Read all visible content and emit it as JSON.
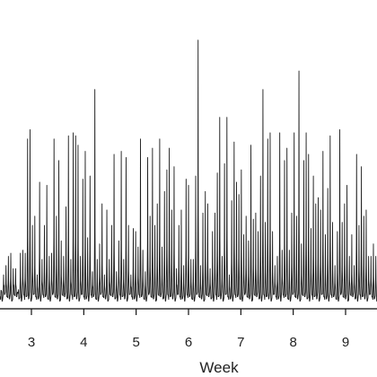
{
  "chart_data": {
    "type": "line",
    "title": "",
    "xlabel": "Week",
    "ylabel": "",
    "xlim": [
      2.4,
      9.6
    ],
    "ylim": [
      0,
      100
    ],
    "grid": false,
    "legend": "none",
    "x_ticks": [
      3,
      4,
      5,
      6,
      7,
      8,
      9
    ],
    "x_tick_labels": [
      "3",
      "4",
      "5",
      "6",
      "7",
      "8",
      "9"
    ],
    "series_color": "#1a1a1a",
    "samples_per_week": 56,
    "peak_heights": [
      6,
      11,
      14,
      17,
      18,
      13,
      13,
      5,
      18,
      19,
      18,
      55,
      58,
      27,
      30,
      11,
      41,
      16,
      27,
      40,
      17,
      18,
      55,
      30,
      48,
      22,
      17,
      33,
      56,
      16,
      57,
      56,
      53,
      17,
      42,
      51,
      23,
      43,
      12,
      71,
      16,
      21,
      34,
      11,
      32,
      16,
      27,
      50,
      12,
      22,
      51,
      16,
      49,
      27,
      11,
      26,
      25,
      20,
      55,
      19,
      12,
      49,
      30,
      52,
      27,
      34,
      55,
      20,
      38,
      45,
      52,
      32,
      46,
      13,
      27,
      32,
      14,
      42,
      40,
      16,
      16,
      43,
      87,
      14,
      31,
      38,
      34,
      13,
      25,
      31,
      44,
      62,
      17,
      47,
      62,
      11,
      35,
      54,
      41,
      37,
      45,
      24,
      30,
      22,
      53,
      29,
      31,
      25,
      43,
      71,
      28,
      55,
      57,
      25,
      14,
      17,
      57,
      19,
      48,
      52,
      19,
      31,
      57,
      30,
      77,
      21,
      48,
      57,
      50,
      26,
      43,
      34,
      36,
      32,
      51,
      24,
      39,
      56,
      28,
      14,
      25,
      58,
      28,
      34,
      40,
      17,
      24,
      14,
      50,
      27,
      46,
      30,
      32,
      17,
      17,
      21,
      17
    ]
  }
}
